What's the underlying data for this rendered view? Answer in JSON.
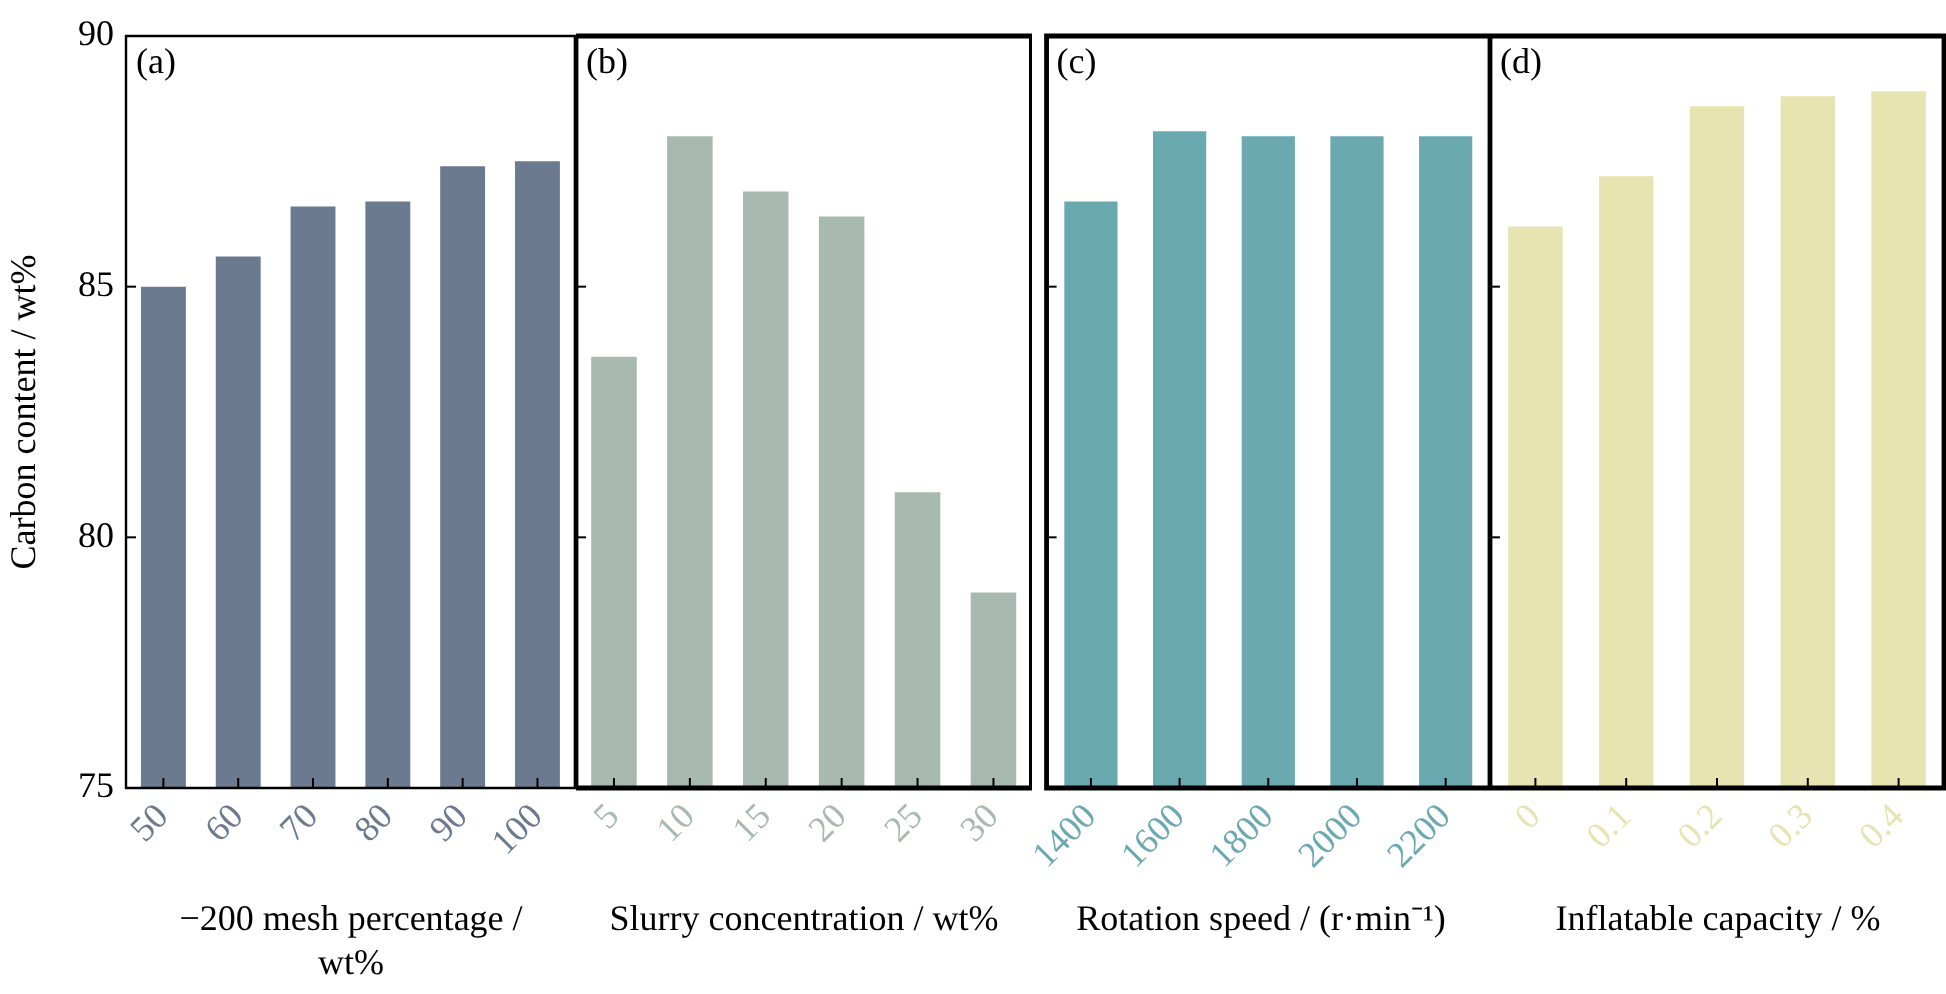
{
  "chart_data": [
    {
      "type": "bar",
      "categories": [
        "50",
        "60",
        "70",
        "80",
        "90",
        "100"
      ],
      "values": [
        85.0,
        85.6,
        86.6,
        86.7,
        87.4,
        87.5
      ],
      "color": "#6b7a8f",
      "ylim": [
        75,
        90
      ],
      "yticks": [
        75,
        80,
        85,
        90
      ],
      "ylabel": "Carbon content / wt%",
      "xlabel": "−200 mesh percentage / wt%",
      "annotations": [
        "(a)"
      ],
      "grid": false,
      "legend": false
    },
    {
      "type": "bar",
      "categories": [
        "5",
        "10",
        "15",
        "20",
        "25",
        "30"
      ],
      "values": [
        83.6,
        88.0,
        86.9,
        86.4,
        80.9,
        78.9
      ],
      "color": "#a8bab0",
      "ylim": [
        75,
        90
      ],
      "yticks": [
        75,
        80,
        85,
        90
      ],
      "tick_labels": "x",
      "xlabel": "Slurry concentration / wt%",
      "annotations": [
        "(b)"
      ],
      "grid": false,
      "legend": false
    },
    {
      "type": "bar",
      "categories": [
        "1400",
        "1600",
        "1800",
        "2000",
        "2200"
      ],
      "values": [
        86.7,
        88.1,
        88.0,
        88.0,
        88.0
      ],
      "color": "#6aa9b0",
      "ylim": [
        75,
        90
      ],
      "yticks": [
        75,
        80,
        85,
        90
      ],
      "tick_labels": "x",
      "xlabel": "Rotation speed / (r·min⁻¹)",
      "annotations": [
        "(c)"
      ],
      "grid": false,
      "legend": false
    },
    {
      "type": "bar",
      "categories": [
        "0",
        "0.1",
        "0.2",
        "0.3",
        "0.4"
      ],
      "values": [
        86.2,
        87.2,
        88.6,
        88.8,
        88.9
      ],
      "color": "#e6e4b0",
      "ylim": [
        75,
        90
      ],
      "yticks": [
        75,
        80,
        85,
        90
      ],
      "tick_labels": "x",
      "xlabel": "Inflatable capacity / %",
      "annotations": [
        "(d)"
      ],
      "grid": false,
      "legend": false
    }
  ]
}
